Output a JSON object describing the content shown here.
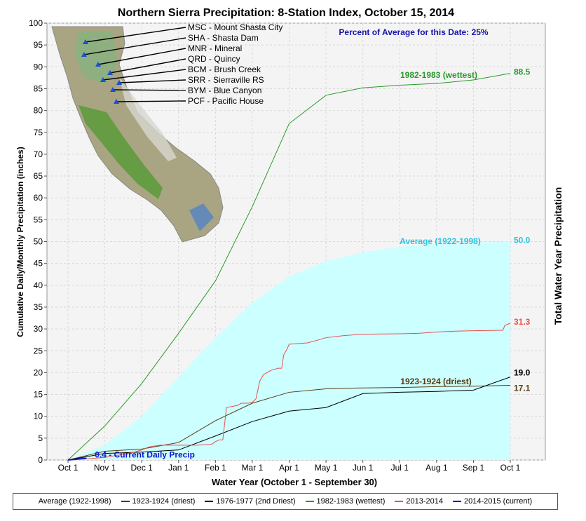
{
  "chart_data": {
    "type": "line",
    "title": "Northern Sierra Precipitation: 8-Station Index, October 15, 2014",
    "xlabel": "Water Year (October 1 - September 30)",
    "ylabel": "Cumulative Daily/Monthly Precipitation (inches)",
    "ylabel_right": "Total Water Year Precipitation",
    "ylim": [
      0,
      100
    ],
    "yticks": [
      0,
      5,
      10,
      15,
      20,
      25,
      30,
      35,
      40,
      45,
      50,
      55,
      60,
      65,
      70,
      75,
      80,
      85,
      90,
      95,
      100
    ],
    "xtick_labels": [
      "Oct 1",
      "Nov 1",
      "Dec 1",
      "Jan 1",
      "Feb 1",
      "Mar 1",
      "Apr 1",
      "May 1",
      "Jun 1",
      "Jul 1",
      "Aug 1",
      "Sep 1",
      "Oct 1"
    ],
    "percent_of_average": "Percent of Average for this Date: 25%",
    "grid": true,
    "legend_position": "bottom",
    "series": [
      {
        "name": "Average (1922-1998)",
        "color": "#ccffff",
        "style": "area",
        "x": [
          0,
          1,
          2,
          3,
          4,
          5,
          6,
          7,
          8,
          9,
          10,
          11,
          12
        ],
        "values": [
          0,
          3.5,
          10,
          19,
          28,
          36,
          42,
          45.5,
          47.5,
          48.8,
          49.5,
          49.8,
          50.0
        ],
        "end_label": "50.0",
        "series_label": "Average (1922-1998)"
      },
      {
        "name": "1923-1924 (driest)",
        "color": "#5a3a10",
        "style": "line",
        "x": [
          0,
          1,
          2,
          3,
          4,
          5,
          6,
          7,
          8,
          9,
          10,
          11,
          12
        ],
        "values": [
          0,
          2.0,
          2.5,
          4.0,
          9.0,
          13.0,
          15.5,
          16.3,
          16.5,
          16.6,
          16.8,
          16.9,
          17.1
        ],
        "end_label": "17.1",
        "series_label": "1923-1924 (driest)"
      },
      {
        "name": "1976-1977 (2nd Driest)",
        "color": "#000000",
        "style": "line",
        "x": [
          0,
          1,
          2,
          3,
          4,
          5,
          6,
          7,
          8,
          9,
          10,
          11,
          12
        ],
        "values": [
          0,
          1.5,
          1.8,
          2.3,
          5.5,
          8.8,
          11.2,
          12.0,
          15.2,
          15.5,
          15.7,
          16.0,
          19.0
        ],
        "end_label": "19.0"
      },
      {
        "name": "1982-1983 (wettest)",
        "color": "#2a9a2a",
        "style": "line",
        "x": [
          0,
          1,
          2,
          3,
          4,
          5,
          6,
          7,
          8,
          9,
          10,
          11,
          12
        ],
        "values": [
          0,
          7.8,
          17.5,
          29,
          41,
          58,
          77,
          83.5,
          85.2,
          85.8,
          86.2,
          87.0,
          88.5
        ],
        "end_label": "88.5",
        "series_label": "1982-1983 (wettest)"
      },
      {
        "name": "2013-2014",
        "color": "#e85050",
        "style": "line",
        "x": [
          0,
          0.6,
          1.0,
          1.5,
          1.8,
          2.0,
          2.2,
          2.5,
          3.0,
          3.5,
          3.9,
          4.0,
          4.1,
          4.2,
          4.3,
          4.6,
          4.7,
          4.9,
          5.0,
          5.1,
          5.2,
          5.3,
          5.5,
          5.7,
          5.8,
          5.85,
          5.95,
          6.0,
          6.5,
          6.8,
          7.0,
          7.5,
          8.0,
          9.0,
          9.5,
          10.0,
          10.5,
          11.0,
          11.8,
          11.85,
          12.0
        ],
        "values": [
          0,
          0.3,
          0.6,
          1.3,
          1.8,
          2.3,
          3.0,
          3.4,
          3.4,
          3.4,
          3.6,
          4.2,
          4.6,
          4.6,
          12.0,
          12.5,
          13.0,
          13.0,
          13.2,
          14.0,
          18.0,
          19.5,
          20.5,
          21.0,
          21.0,
          24.0,
          25.5,
          26.5,
          26.8,
          27.5,
          28.0,
          28.5,
          28.8,
          28.9,
          29.0,
          29.3,
          29.5,
          29.6,
          29.7,
          30.8,
          31.3
        ],
        "end_label": "31.3"
      },
      {
        "name": "2014-2015 (current)",
        "color": "#1515cc",
        "style": "line",
        "x": [
          0,
          0.25,
          0.5
        ],
        "values": [
          0,
          0.2,
          0.4
        ],
        "end_label": "0.4 - Current Daily Precip"
      }
    ]
  },
  "stations": [
    {
      "label": "MSC - Mount Shasta City"
    },
    {
      "label": "SHA - Shasta Dam"
    },
    {
      "label": "MNR - Mineral"
    },
    {
      "label": "QRD - Quincy"
    },
    {
      "label": "BCM - Brush Creek"
    },
    {
      "label": "SRR - Sierraville RS"
    },
    {
      "label": "BYM - Blue Canyon"
    },
    {
      "label": "PCF - Pacific House"
    }
  ],
  "legend": [
    {
      "label": "Average (1922-1998)",
      "color": "#ccffff"
    },
    {
      "label": "1923-1924 (driest)",
      "color": "#5a3a10"
    },
    {
      "label": "1976-1977 (2nd Driest)",
      "color": "#000000"
    },
    {
      "label": "1982-1983 (wettest)",
      "color": "#2a9a2a"
    },
    {
      "label": "2013-2014",
      "color": "#e85050"
    },
    {
      "label": "2014-2015 (current)",
      "color": "#1515cc"
    }
  ]
}
